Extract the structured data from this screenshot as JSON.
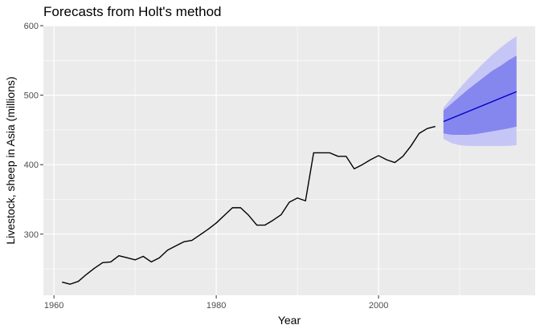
{
  "chart_data": {
    "type": "line",
    "title": "Forecasts from Holt's method",
    "xlabel": "Year",
    "ylabel": "Livestock, sheep in Asia (millions)",
    "xlim": [
      1958.7,
      2019.3
    ],
    "ylim": [
      212,
      600
    ],
    "x_ticks": [
      1960,
      1980,
      2000
    ],
    "x_tick_labels": [
      "1960",
      "1980",
      "2000"
    ],
    "y_ticks": [
      300,
      400,
      500,
      600
    ],
    "y_tick_labels": [
      "300",
      "400",
      "500",
      "600"
    ],
    "x_minor_ticks": [
      1970,
      1990,
      2010
    ],
    "y_minor_ticks": [
      250,
      350,
      450,
      550
    ],
    "grid": true,
    "legend": "none",
    "series": [
      {
        "role": "observed",
        "color": "#000000",
        "x": [
          1961,
          1962,
          1963,
          1964,
          1965,
          1966,
          1967,
          1968,
          1969,
          1970,
          1971,
          1972,
          1973,
          1974,
          1975,
          1976,
          1977,
          1978,
          1979,
          1980,
          1981,
          1982,
          1983,
          1984,
          1985,
          1986,
          1987,
          1988,
          1989,
          1990,
          1991,
          1992,
          1993,
          1994,
          1995,
          1996,
          1997,
          1998,
          1999,
          2000,
          2001,
          2002,
          2003,
          2004,
          2005,
          2006,
          2007
        ],
        "values": [
          231,
          228,
          232,
          242,
          251,
          259,
          260,
          269,
          266,
          263,
          268,
          260,
          266,
          277,
          283,
          289,
          291,
          299,
          307,
          316,
          327,
          338,
          338,
          327,
          313,
          313,
          320,
          328,
          346,
          352,
          348,
          417,
          417,
          417,
          412,
          412,
          394,
          400,
          407,
          413,
          407,
          403,
          412,
          427,
          445,
          452,
          455
        ]
      },
      {
        "role": "forecast",
        "color": "#0000cc",
        "x": [
          2008,
          2017
        ],
        "values": [
          462,
          505
        ]
      }
    ],
    "intervals": [
      {
        "level": 95,
        "color": "#c6c6f6",
        "x": [
          2008,
          2009,
          2010,
          2011,
          2012,
          2013,
          2014,
          2015,
          2016,
          2017
        ],
        "lower": [
          437,
          431,
          428,
          427,
          427,
          427,
          427,
          427,
          427,
          428
        ],
        "upper": [
          482,
          496,
          510,
          523,
          535,
          547,
          558,
          568,
          577,
          585
        ]
      },
      {
        "level": 80,
        "color": "#8686ef",
        "x": [
          2008,
          2009,
          2010,
          2011,
          2012,
          2013,
          2014,
          2015,
          2016,
          2017
        ],
        "lower": [
          445,
          443,
          443,
          443,
          444,
          446,
          448,
          450,
          452,
          455
        ],
        "upper": [
          478,
          488,
          498,
          508,
          517,
          526,
          535,
          542,
          550,
          557
        ]
      }
    ],
    "colors": {
      "panel": "#ebebeb",
      "grid": "#ffffff"
    }
  }
}
